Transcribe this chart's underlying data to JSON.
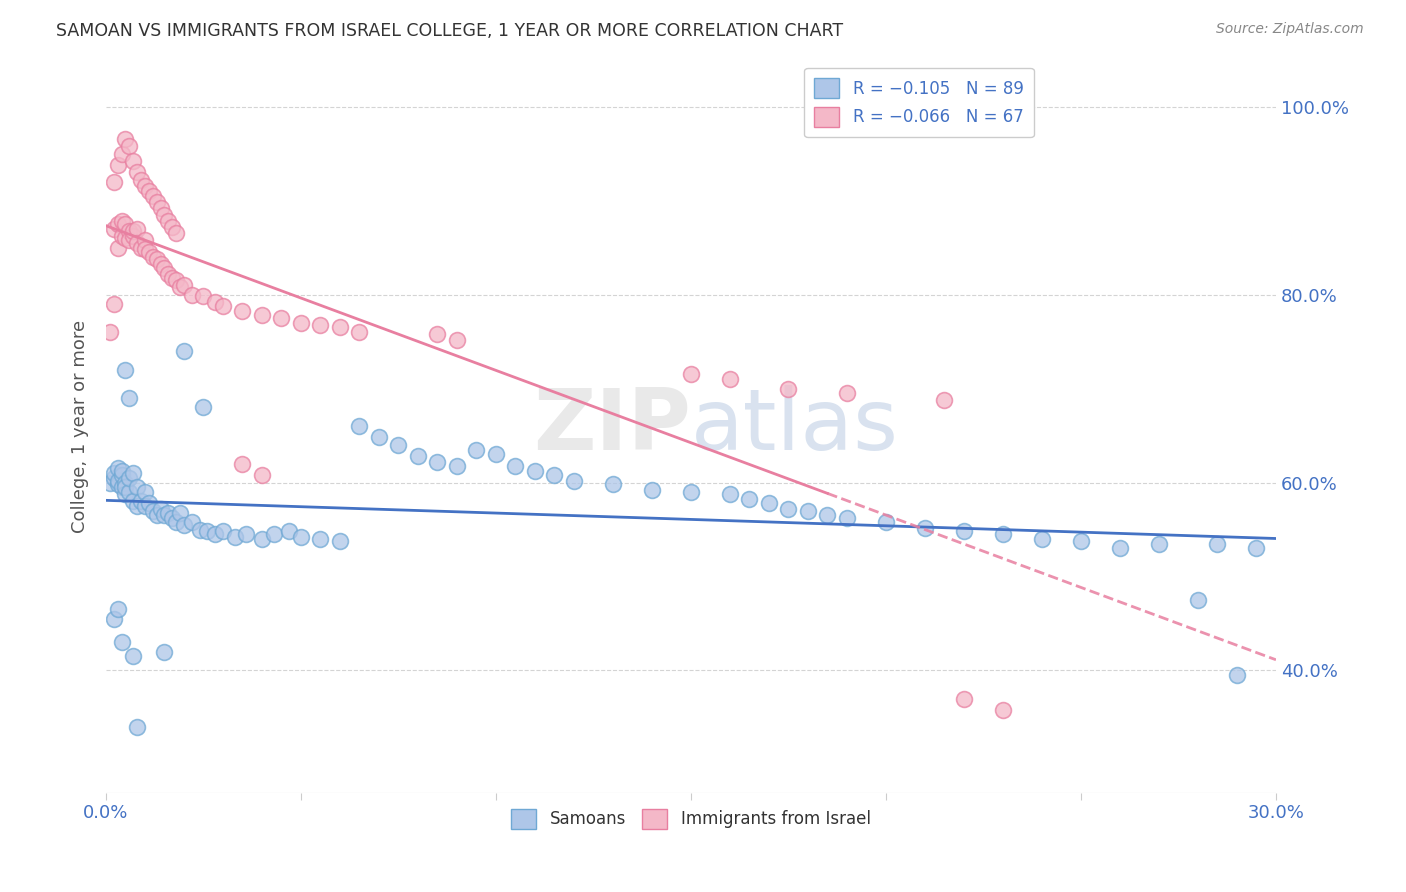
{
  "title": "SAMOAN VS IMMIGRANTS FROM ISRAEL COLLEGE, 1 YEAR OR MORE CORRELATION CHART",
  "source": "Source: ZipAtlas.com",
  "ylabel": "College, 1 year or more",
  "xlim": [
    0.0,
    0.3
  ],
  "ylim": [
    0.27,
    1.05
  ],
  "yticks": [
    0.4,
    0.6,
    0.8,
    1.0
  ],
  "ytick_labels": [
    "40.0%",
    "60.0%",
    "80.0%",
    "100.0%"
  ],
  "xticks": [
    0.0,
    0.05,
    0.1,
    0.15,
    0.2,
    0.25,
    0.3
  ],
  "xtick_labels": [
    "0.0%",
    "",
    "",
    "",
    "",
    "",
    "30.0%"
  ],
  "samoans_color": "#aec6e8",
  "samoans_edge": "#6fa8d4",
  "israel_color": "#f4b8c8",
  "israel_edge": "#e87fa0",
  "trendline_samoan_color": "#4472c4",
  "trendline_israel_color": "#e87fa0",
  "watermark": "ZIPatlas",
  "background_color": "#ffffff",
  "grid_color": "#d0d0d0",
  "samoans_x": [
    0.001,
    0.002,
    0.002,
    0.003,
    0.003,
    0.003,
    0.004,
    0.004,
    0.004,
    0.005,
    0.005,
    0.005,
    0.006,
    0.006,
    0.007,
    0.007,
    0.008,
    0.008,
    0.009,
    0.01,
    0.01,
    0.011,
    0.012,
    0.013,
    0.014,
    0.015,
    0.016,
    0.017,
    0.018,
    0.019,
    0.02,
    0.022,
    0.024,
    0.026,
    0.028,
    0.03,
    0.033,
    0.036,
    0.04,
    0.043,
    0.047,
    0.05,
    0.055,
    0.06,
    0.065,
    0.07,
    0.075,
    0.08,
    0.085,
    0.09,
    0.095,
    0.1,
    0.105,
    0.11,
    0.115,
    0.12,
    0.13,
    0.14,
    0.15,
    0.16,
    0.165,
    0.17,
    0.175,
    0.18,
    0.185,
    0.19,
    0.2,
    0.21,
    0.22,
    0.23,
    0.24,
    0.25,
    0.26,
    0.27,
    0.28,
    0.285,
    0.29,
    0.295,
    0.002,
    0.003,
    0.004,
    0.005,
    0.006,
    0.007,
    0.008,
    0.015,
    0.02,
    0.025
  ],
  "samoans_y": [
    0.6,
    0.605,
    0.61,
    0.598,
    0.602,
    0.615,
    0.595,
    0.608,
    0.612,
    0.6,
    0.588,
    0.595,
    0.59,
    0.605,
    0.58,
    0.61,
    0.575,
    0.595,
    0.58,
    0.59,
    0.575,
    0.578,
    0.57,
    0.565,
    0.572,
    0.565,
    0.568,
    0.562,
    0.558,
    0.568,
    0.555,
    0.558,
    0.55,
    0.548,
    0.545,
    0.548,
    0.542,
    0.545,
    0.54,
    0.545,
    0.548,
    0.542,
    0.54,
    0.538,
    0.66,
    0.648,
    0.64,
    0.628,
    0.622,
    0.618,
    0.635,
    0.63,
    0.618,
    0.612,
    0.608,
    0.602,
    0.598,
    0.592,
    0.59,
    0.588,
    0.582,
    0.578,
    0.572,
    0.57,
    0.565,
    0.562,
    0.558,
    0.552,
    0.548,
    0.545,
    0.54,
    0.538,
    0.53,
    0.535,
    0.475,
    0.535,
    0.395,
    0.53,
    0.455,
    0.465,
    0.43,
    0.72,
    0.69,
    0.415,
    0.34,
    0.42,
    0.74,
    0.68
  ],
  "israel_x": [
    0.001,
    0.002,
    0.002,
    0.003,
    0.003,
    0.004,
    0.004,
    0.005,
    0.005,
    0.006,
    0.006,
    0.007,
    0.007,
    0.008,
    0.008,
    0.009,
    0.01,
    0.01,
    0.011,
    0.012,
    0.013,
    0.014,
    0.015,
    0.016,
    0.017,
    0.018,
    0.019,
    0.02,
    0.022,
    0.025,
    0.028,
    0.03,
    0.035,
    0.04,
    0.045,
    0.05,
    0.055,
    0.06,
    0.065,
    0.002,
    0.003,
    0.004,
    0.005,
    0.006,
    0.007,
    0.008,
    0.009,
    0.01,
    0.011,
    0.012,
    0.013,
    0.014,
    0.015,
    0.016,
    0.017,
    0.018,
    0.035,
    0.04,
    0.085,
    0.09,
    0.15,
    0.16,
    0.175,
    0.19,
    0.215,
    0.22,
    0.23
  ],
  "israel_y": [
    0.76,
    0.79,
    0.87,
    0.85,
    0.875,
    0.862,
    0.878,
    0.875,
    0.86,
    0.868,
    0.858,
    0.862,
    0.868,
    0.87,
    0.855,
    0.85,
    0.858,
    0.848,
    0.845,
    0.84,
    0.838,
    0.832,
    0.828,
    0.822,
    0.818,
    0.815,
    0.808,
    0.81,
    0.8,
    0.798,
    0.792,
    0.788,
    0.782,
    0.778,
    0.775,
    0.77,
    0.768,
    0.765,
    0.76,
    0.92,
    0.938,
    0.95,
    0.965,
    0.958,
    0.942,
    0.93,
    0.922,
    0.915,
    0.91,
    0.905,
    0.898,
    0.892,
    0.885,
    0.878,
    0.872,
    0.865,
    0.62,
    0.608,
    0.758,
    0.752,
    0.715,
    0.71,
    0.7,
    0.695,
    0.688,
    0.37,
    0.358
  ]
}
